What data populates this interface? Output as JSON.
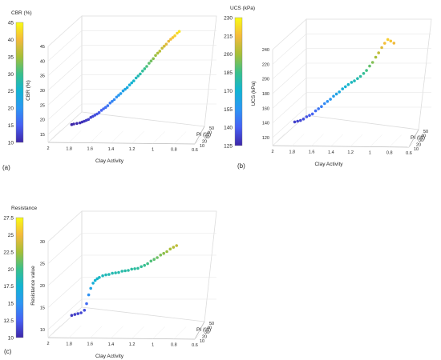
{
  "figure": {
    "panels": [
      {
        "id": "a",
        "panel_label": "(a)",
        "colorbar": {
          "title": "CBR (%)",
          "range": [
            10,
            45
          ],
          "ticks": [
            "45",
            "40",
            "35",
            "30",
            "25",
            "20",
            "15",
            "10"
          ]
        },
        "z_ticks": [
          "15",
          "20",
          "25",
          "30",
          "35",
          "40",
          "45"
        ],
        "colormap": [
          "#3e26a8",
          "#4760f3",
          "#2d96f3",
          "#12b4d3",
          "#3ac08b",
          "#a6bf38",
          "#f4ba3d",
          "#f9fb14"
        ]
      },
      {
        "id": "b",
        "panel_label": "(b)",
        "colorbar": {
          "title": "UCS (kPa)",
          "range": [
            125,
            230
          ],
          "ticks": [
            "230",
            "215",
            "200",
            "185",
            "170",
            "155",
            "140",
            "125"
          ]
        },
        "z_ticks": [
          "120",
          "140",
          "160",
          "180",
          "200",
          "220",
          "240"
        ],
        "colormap": [
          "#3e26a8",
          "#4760f3",
          "#2d96f3",
          "#12b4d3",
          "#3ac08b",
          "#a6bf38",
          "#f4ba3d",
          "#f9fb14"
        ]
      },
      {
        "id": "c",
        "panel_label": "(c)",
        "colorbar": {
          "title": "Resistance",
          "range": [
            10,
            27.5
          ],
          "ticks": [
            "27.5",
            "25",
            "22.5",
            "20",
            "17.5",
            "15",
            "12.5",
            "10"
          ]
        },
        "z_ticks": [
          "10",
          "15",
          "20",
          "25",
          "30"
        ],
        "colormap": [
          "#3e26a8",
          "#4760f3",
          "#2d96f3",
          "#12b4d3",
          "#3ac08b",
          "#a6bf38",
          "#f4ba3d",
          "#f9fb14"
        ]
      }
    ]
  },
  "chart_data": [
    {
      "type": "scatter",
      "title": "",
      "xlabel": "Clay Activity",
      "ylabel": "PI (%)",
      "zlabel": "CBR (%)",
      "xlim": [
        0.6,
        2.0
      ],
      "ylim": [
        10,
        50
      ],
      "zlim": [
        15,
        45
      ],
      "x_ticks": [
        "2",
        "1.8",
        "1.6",
        "1.4",
        "1.2",
        "1",
        "0.8",
        "0.6"
      ],
      "y_ticks": [
        "10",
        "20",
        "30",
        "40",
        "50"
      ],
      "x": [
        1.8,
        1.78,
        1.75,
        1.72,
        1.7,
        1.68,
        1.66,
        1.64,
        1.62,
        1.6,
        1.58,
        1.56,
        1.54,
        1.52,
        1.5,
        1.48,
        1.46,
        1.44,
        1.42,
        1.4,
        1.38,
        1.36,
        1.34,
        1.32,
        1.3,
        1.28,
        1.26,
        1.24,
        1.22,
        1.2,
        1.18,
        1.16,
        1.14,
        1.12,
        1.1,
        1.08,
        1.06,
        1.04,
        1.02,
        1.0,
        0.98,
        0.96,
        0.94,
        0.92,
        0.9,
        0.88,
        0.86,
        0.84,
        0.82,
        0.8
      ],
      "y": [
        22,
        22,
        22,
        22,
        22,
        22,
        22,
        22,
        23,
        23,
        23,
        23,
        23,
        24,
        24,
        24,
        24,
        25,
        25,
        25,
        26,
        26,
        26,
        27,
        27,
        27,
        28,
        28,
        28,
        29,
        29,
        29,
        30,
        30,
        30,
        31,
        31,
        31,
        32,
        32,
        32,
        33,
        33,
        33,
        34,
        34,
        34,
        34,
        35,
        35
      ],
      "z": [
        15.0,
        15.2,
        15.4,
        15.6,
        15.9,
        16.2,
        16.5,
        16.8,
        17.2,
        17.6,
        18.0,
        18.4,
        18.9,
        19.4,
        19.9,
        20.4,
        21.0,
        21.6,
        22.2,
        22.8,
        23.4,
        24.0,
        24.6,
        25.2,
        25.8,
        26.4,
        27.0,
        27.7,
        28.4,
        29.1,
        29.8,
        30.5,
        31.2,
        32.0,
        32.8,
        33.6,
        34.4,
        35.2,
        36.0,
        36.8,
        37.5,
        38.2,
        38.9,
        39.6,
        40.3,
        41.0,
        41.6,
        42.2,
        42.8,
        43.4
      ],
      "colorbar_label": "CBR (%)"
    },
    {
      "type": "scatter",
      "title": "",
      "xlabel": "Clay Activity",
      "ylabel": "PI (%)",
      "zlabel": "UCS (kPa)",
      "xlim": [
        0.6,
        2.0
      ],
      "ylim": [
        10,
        50
      ],
      "zlim": [
        120,
        240
      ],
      "x_ticks": [
        "2",
        "1.8",
        "1.6",
        "1.4",
        "1.2",
        "1",
        "0.8",
        "0.6"
      ],
      "y_ticks": [
        "10",
        "20",
        "30",
        "40",
        "50"
      ],
      "x": [
        1.8,
        1.77,
        1.74,
        1.71,
        1.68,
        1.65,
        1.62,
        1.59,
        1.56,
        1.53,
        1.5,
        1.47,
        1.44,
        1.41,
        1.38,
        1.35,
        1.32,
        1.29,
        1.26,
        1.23,
        1.2,
        1.17,
        1.14,
        1.11,
        1.08,
        1.05,
        1.02,
        0.99,
        0.96,
        0.93,
        0.9,
        0.87,
        0.84,
        0.81
      ],
      "y": [
        22,
        22,
        22,
        22,
        23,
        23,
        23,
        24,
        24,
        24,
        25,
        25,
        25,
        26,
        26,
        26,
        27,
        27,
        27,
        28,
        28,
        29,
        29,
        30,
        30,
        31,
        31,
        32,
        32,
        33,
        33,
        34,
        34,
        35
      ],
      "z": [
        128,
        129,
        130,
        132,
        134,
        136,
        138,
        141,
        144,
        147,
        150,
        153,
        156,
        159,
        162,
        165,
        168,
        171,
        174,
        176,
        178,
        180,
        183,
        186,
        190,
        195,
        200,
        206,
        212,
        218,
        224,
        228,
        226,
        222
      ],
      "colorbar_label": "UCS (kPa)"
    },
    {
      "type": "scatter",
      "title": "",
      "xlabel": "Clay Activity",
      "ylabel": "PI (%)",
      "zlabel": "Resistance value",
      "xlim": [
        0.6,
        2.0
      ],
      "ylim": [
        10,
        50
      ],
      "zlim": [
        10,
        30
      ],
      "x_ticks": [
        "2",
        "1.8",
        "1.6",
        "1.4",
        "1.2",
        "1",
        "0.8",
        "0.6"
      ],
      "y_ticks": [
        "10",
        "20",
        "30",
        "40",
        "50"
      ],
      "x": [
        1.8,
        1.77,
        1.74,
        1.71,
        1.68,
        1.66,
        1.64,
        1.62,
        1.6,
        1.58,
        1.56,
        1.54,
        1.51,
        1.48,
        1.45,
        1.42,
        1.39,
        1.36,
        1.33,
        1.3,
        1.27,
        1.24,
        1.21,
        1.18,
        1.15,
        1.12,
        1.09,
        1.06,
        1.03,
        1.0,
        0.97,
        0.94,
        0.91,
        0.88,
        0.85,
        0.82
      ],
      "y": [
        22,
        22,
        22,
        22,
        23,
        23,
        23,
        23,
        24,
        24,
        24,
        24,
        25,
        25,
        25,
        26,
        26,
        26,
        27,
        27,
        27,
        28,
        28,
        28,
        29,
        29,
        29,
        30,
        30,
        30,
        31,
        31,
        31,
        32,
        32,
        32
      ],
      "z": [
        11.0,
        11.2,
        11.4,
        11.6,
        12.0,
        13.5,
        15.5,
        17.0,
        18.0,
        18.6,
        19.0,
        19.3,
        19.5,
        19.7,
        19.8,
        19.9,
        20.0,
        20.1,
        20.2,
        20.3,
        20.4,
        20.5,
        20.6,
        20.7,
        20.9,
        21.2,
        21.6,
        22.0,
        22.4,
        22.8,
        23.2,
        23.6,
        24.0,
        24.4,
        24.8,
        25.2
      ],
      "colorbar_label": "Resistance"
    }
  ]
}
